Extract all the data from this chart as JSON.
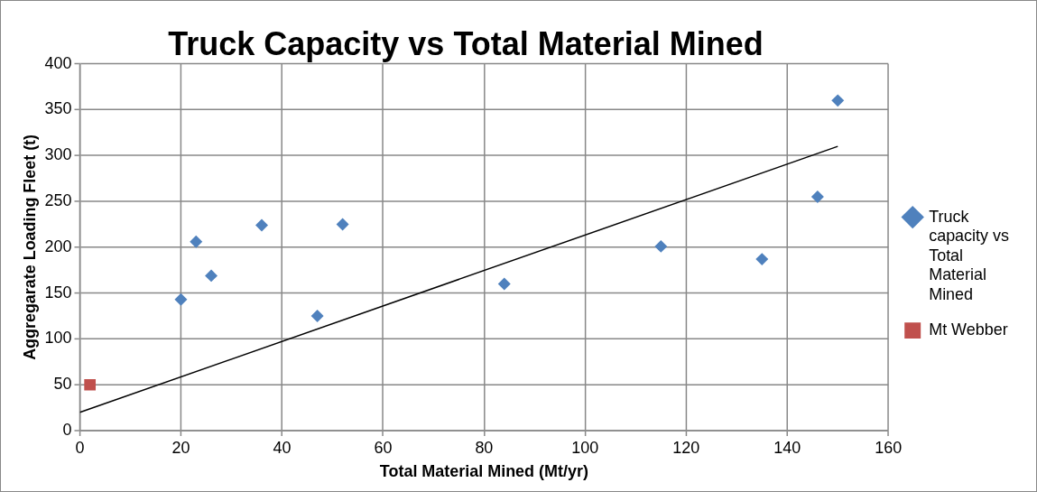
{
  "chart_data": {
    "type": "scatter",
    "title": "Truck Capacity vs Total Material Mined",
    "xlabel": "Total Material Mined (Mt/yr)",
    "ylabel": "Aggregarate Loading Fleet (t)",
    "series": [
      {
        "name": "Truck capacity vs Total Material Mined",
        "color": "#4f81bd",
        "marker": "diamond",
        "x": [
          20,
          23,
          26,
          36,
          47,
          52,
          84,
          115,
          135,
          146,
          150
        ],
        "values": [
          143,
          206,
          169,
          224,
          125,
          225,
          160,
          201,
          187,
          255,
          360
        ]
      },
      {
        "name": "Mt Webber",
        "color": "#c0504d",
        "marker": "square",
        "x": [
          2
        ],
        "values": [
          50
        ]
      },
      {
        "type": "line",
        "color": "#000000",
        "marker": "none",
        "x": [
          0,
          150
        ],
        "values": [
          20,
          310
        ]
      }
    ],
    "xlim": [
      0,
      160
    ],
    "xticks": [
      0,
      20,
      40,
      60,
      80,
      100,
      120,
      140,
      160
    ],
    "ylim": [
      0,
      400
    ],
    "yticks": [
      0,
      50,
      100,
      150,
      200,
      250,
      300,
      350,
      400
    ],
    "grid": true,
    "legend": "right"
  }
}
